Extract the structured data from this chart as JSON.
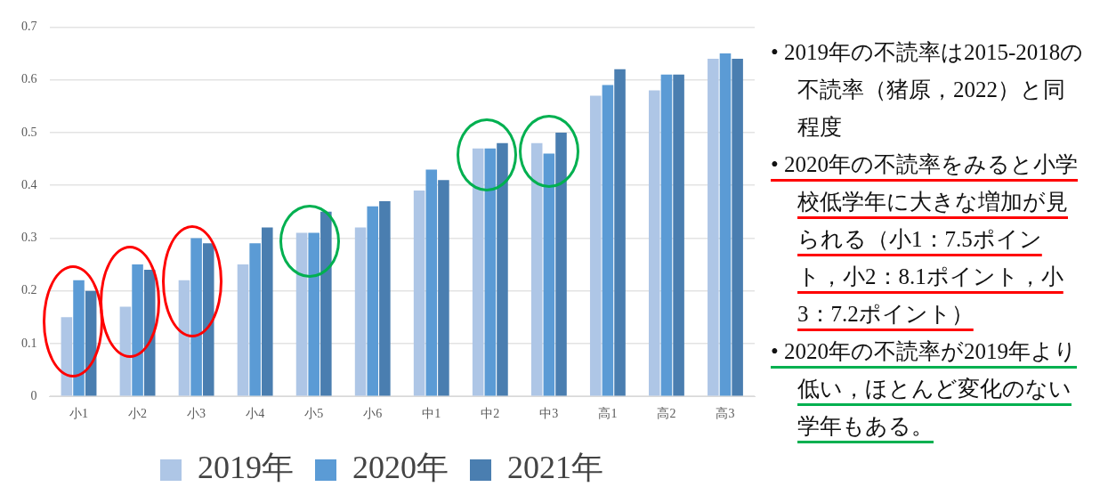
{
  "chart_data": {
    "type": "bar",
    "categories": [
      "小1",
      "小2",
      "小3",
      "小4",
      "小5",
      "小6",
      "中1",
      "中2",
      "中3",
      "高1",
      "高2",
      "高3"
    ],
    "series": [
      {
        "name": "2019年",
        "color": "#aec6e6",
        "values": [
          0.15,
          0.17,
          0.22,
          0.25,
          0.31,
          0.32,
          0.39,
          0.47,
          0.48,
          0.57,
          0.58,
          0.64
        ]
      },
      {
        "name": "2020年",
        "color": "#5b9bd5",
        "values": [
          0.22,
          0.25,
          0.3,
          0.29,
          0.31,
          0.36,
          0.43,
          0.47,
          0.46,
          0.59,
          0.61,
          0.65
        ]
      },
      {
        "name": "2021年",
        "color": "#4a7eb0",
        "values": [
          0.2,
          0.24,
          0.29,
          0.32,
          0.35,
          0.37,
          0.41,
          0.48,
          0.5,
          0.62,
          0.61,
          0.64
        ]
      }
    ],
    "ylim": [
      0,
      0.7
    ],
    "yticks": [
      0,
      0.1,
      0.2,
      0.3,
      0.4,
      0.5,
      0.6,
      0.7
    ],
    "grid": "y",
    "legend": "bottom",
    "annotations": [
      "• 2019年の不読率は2015-2018の不読率（猪原，2022）と同程度",
      "• 2020年の不読率をみると小学校低学年に大きな増加が見られる（小1：7.5ポイント，小2：8.1ポイント，小3：7.2ポイント）",
      "• 2020年の不読率が2019年より低い，ほとんど変化のない学年もある。"
    ]
  }
}
